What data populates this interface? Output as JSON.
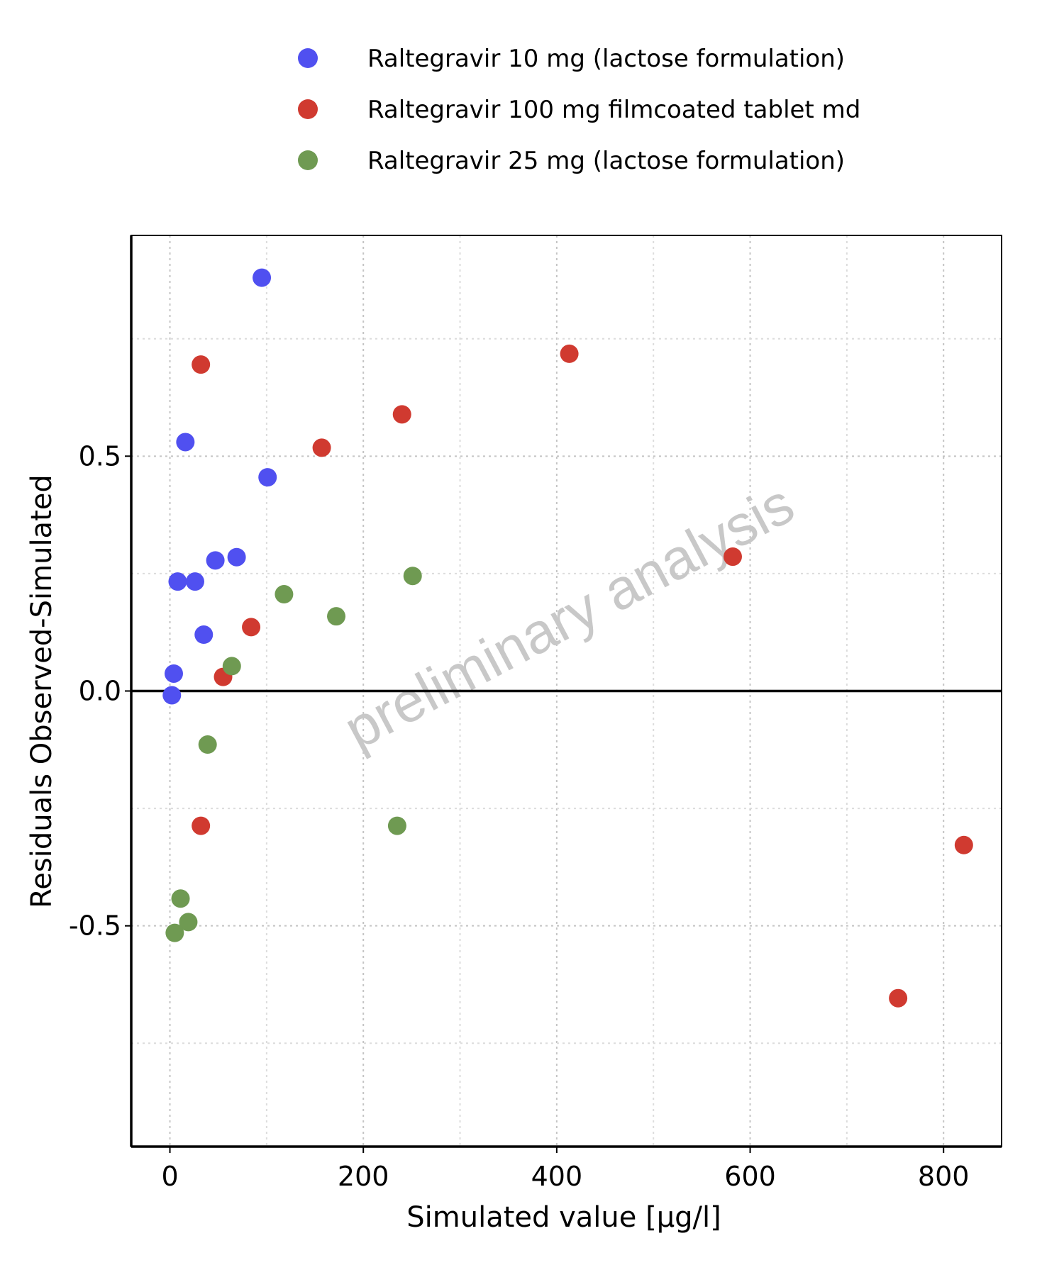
{
  "chart_data": {
    "type": "scatter",
    "xlabel": "Simulated value [µg/l]",
    "ylabel": "Residuals Observed-Simulated",
    "xlim": [
      -40,
      860
    ],
    "ylim": [
      -0.97,
      0.97
    ],
    "x_ticks": [
      0,
      200,
      400,
      600,
      800
    ],
    "x_tick_labels": [
      "0",
      "200",
      "400",
      "600",
      "800"
    ],
    "y_ticks": [
      0.5,
      0.0,
      -0.5
    ],
    "y_tick_labels": [
      "0.5",
      "0.0",
      "-0.5"
    ],
    "grid": true,
    "reference_line_y": 0,
    "legend_position": "top",
    "watermark": "preliminary analysis",
    "series": [
      {
        "name": "Raltegravir 10 mg (lactose formulation)",
        "color": "#5050f0",
        "points": [
          {
            "x": 95,
            "y": 0.88
          },
          {
            "x": 16,
            "y": 0.53
          },
          {
            "x": 101,
            "y": 0.455
          },
          {
            "x": 69,
            "y": 0.285
          },
          {
            "x": 47,
            "y": 0.278
          },
          {
            "x": 8,
            "y": 0.233
          },
          {
            "x": 26,
            "y": 0.233
          },
          {
            "x": 35,
            "y": 0.12
          },
          {
            "x": 4,
            "y": 0.037
          },
          {
            "x": 2,
            "y": -0.009
          }
        ]
      },
      {
        "name": "Raltegravir 100 mg filmcoated tablet md",
        "color": "#d03a30",
        "points": [
          {
            "x": 413,
            "y": 0.718
          },
          {
            "x": 32,
            "y": 0.695
          },
          {
            "x": 240,
            "y": 0.589
          },
          {
            "x": 157,
            "y": 0.518
          },
          {
            "x": 582,
            "y": 0.286
          },
          {
            "x": 84,
            "y": 0.136
          },
          {
            "x": 55,
            "y": 0.03
          },
          {
            "x": 32,
            "y": -0.287
          },
          {
            "x": 821,
            "y": -0.328
          },
          {
            "x": 753,
            "y": -0.654
          }
        ]
      },
      {
        "name": "Raltegravir 25 mg (lactose formulation)",
        "color": "#6f9a52",
        "points": [
          {
            "x": 251,
            "y": 0.245
          },
          {
            "x": 118,
            "y": 0.206
          },
          {
            "x": 172,
            "y": 0.159
          },
          {
            "x": 64,
            "y": 0.053
          },
          {
            "x": 39,
            "y": -0.114
          },
          {
            "x": 235,
            "y": -0.287
          },
          {
            "x": 11,
            "y": -0.442
          },
          {
            "x": 19,
            "y": -0.492
          },
          {
            "x": 5,
            "y": -0.515
          }
        ]
      }
    ]
  }
}
